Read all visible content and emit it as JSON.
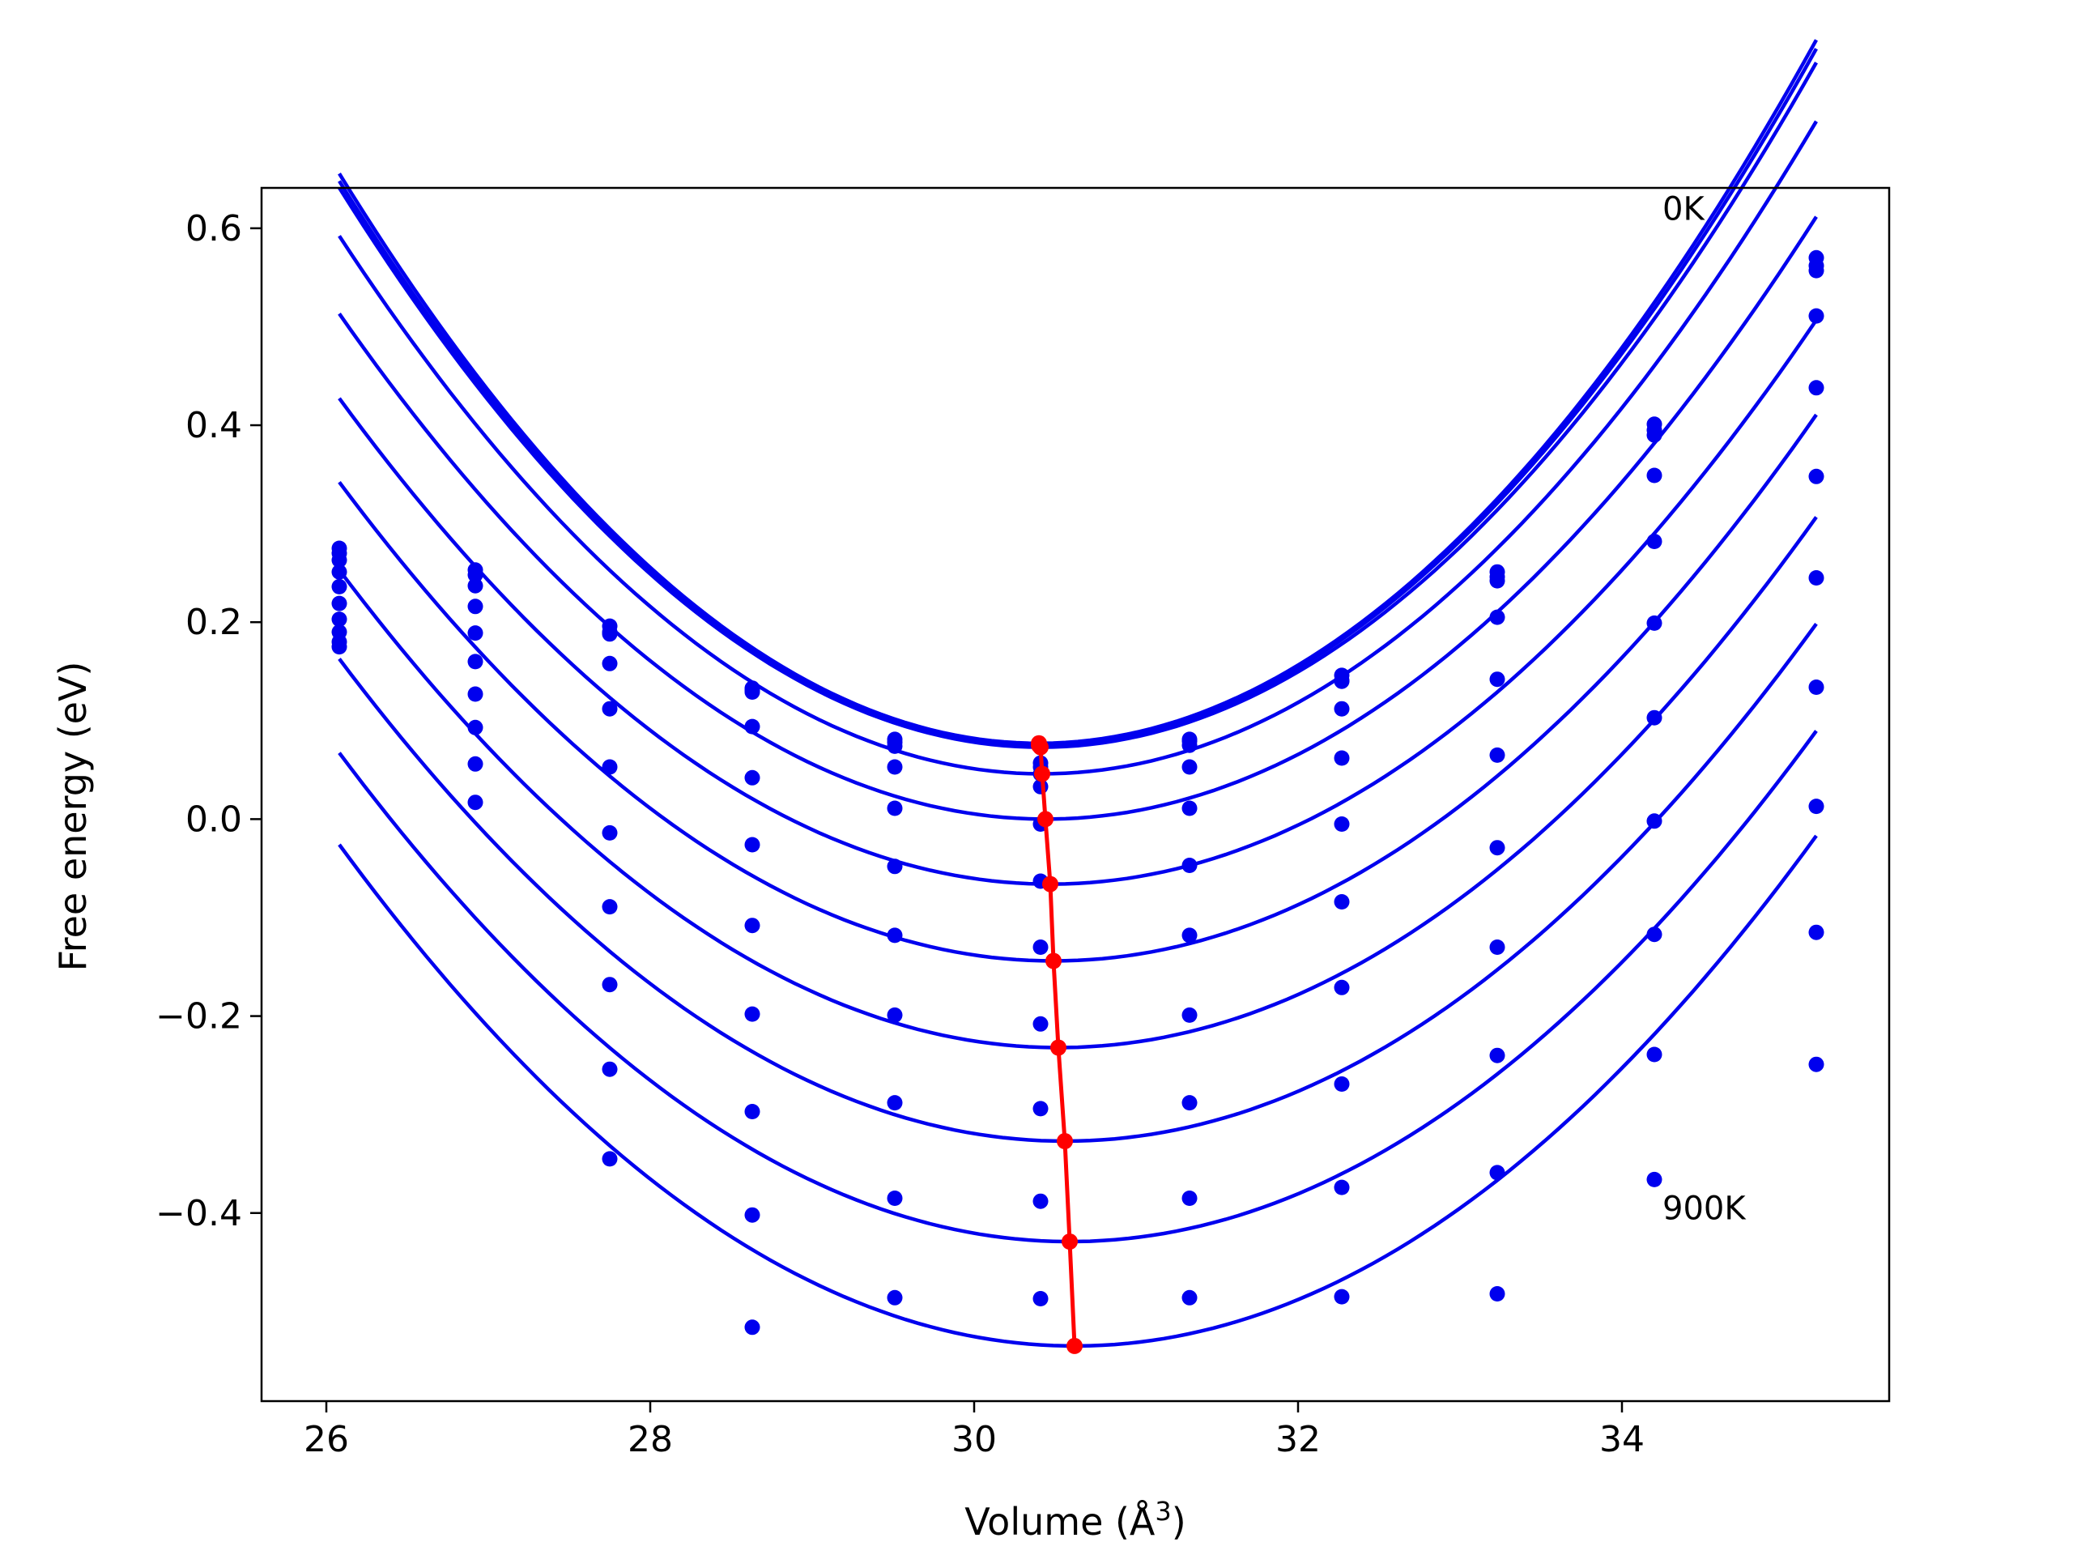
{
  "chart_data": {
    "type": "scatter",
    "title": "",
    "xlabel": "Volume (Å",
    "xlabel_superscript": "3",
    "xlabel_close": ")",
    "ylabel": "Free energy (eV)",
    "xlim": [
      25.6,
      35.65
    ],
    "ylim": [
      -0.591,
      0.641
    ],
    "xticks": [
      26,
      28,
      30,
      32,
      34
    ],
    "xtick_labels": [
      "26",
      "28",
      "30",
      "32",
      "34"
    ],
    "yticks": [
      -0.4,
      -0.2,
      0.0,
      0.2,
      0.4,
      0.6
    ],
    "ytick_labels": [
      "−0.4",
      "−0.2",
      "0.0",
      "0.2",
      "0.4",
      "0.6"
    ],
    "grid": false,
    "legend": "none",
    "colors": {
      "points": "#0000ee",
      "fits": "#0000ee",
      "minima": "#ff0000"
    },
    "annotations": [
      {
        "text": "0K",
        "x": 34.25,
        "y": 0.62
      },
      {
        "text": "900K",
        "x": 34.25,
        "y": -0.395
      }
    ],
    "volumes": [
      26.08,
      26.92,
      27.75,
      28.63,
      29.51,
      30.41,
      31.33,
      32.27,
      33.23,
      34.2,
      35.2
    ],
    "series": [
      {
        "values": [
          0.275,
          0.253,
          0.196,
          0.133,
          0.078,
          0.057,
          0.079,
          0.146,
          0.251,
          0.401,
          0.57
        ],
        "fit": {
          "a": 0.031,
          "v0": 30.4,
          "e0": 0.077
        }
      },
      {
        "values": [
          0.27,
          0.248,
          0.19,
          0.129,
          0.074,
          0.053,
          0.075,
          0.141,
          0.246,
          0.395,
          0.562
        ],
        "fit": {
          "a": 0.0307,
          "v0": 30.4,
          "e0": 0.075
        }
      },
      {
        "values": [
          0.263,
          0.237,
          0.188,
          0.131,
          0.081,
          0.033,
          0.081,
          0.14,
          0.242,
          0.39,
          0.557
        ],
        "fit": {
          "a": 0.0303,
          "v0": 30.41,
          "e0": 0.073
        }
      },
      {
        "values": [
          0.251,
          0.216,
          0.158,
          0.094,
          0.053,
          0.046,
          0.053,
          0.112,
          0.205,
          0.349,
          0.511
        ],
        "fit": {
          "a": 0.029,
          "v0": 30.42,
          "e0": 0.046
        }
      },
      {
        "values": [
          0.236,
          0.189,
          0.112,
          0.042,
          0.011,
          -0.005,
          0.011,
          0.062,
          0.142,
          0.282,
          0.438
        ],
        "fit": {
          "a": 0.027,
          "v0": 30.44,
          "e0": 0.0
        }
      },
      {
        "values": [
          0.219,
          0.16,
          0.053,
          -0.026,
          -0.048,
          -0.063,
          -0.047,
          -0.005,
          0.065,
          0.199,
          0.348
        ],
        "fit": {
          "a": 0.0256,
          "v0": 30.47,
          "e0": -0.066
        }
      },
      {
        "values": [
          0.203,
          0.127,
          -0.014,
          -0.108,
          -0.118,
          -0.13,
          -0.118,
          -0.084,
          -0.029,
          0.103,
          0.245
        ],
        "fit": {
          "a": 0.025,
          "v0": 30.49,
          "e0": -0.144
        }
      },
      {
        "values": [
          0.19,
          0.093,
          -0.089,
          -0.198,
          -0.199,
          -0.208,
          -0.199,
          -0.171,
          -0.13,
          -0.002,
          0.134
        ],
        "fit": {
          "a": 0.0246,
          "v0": 30.52,
          "e0": -0.232
        }
      },
      {
        "values": [
          0.18,
          0.056,
          -0.168,
          -0.297,
          -0.288,
          -0.294,
          -0.288,
          -0.269,
          -0.24,
          -0.117,
          0.013
        ],
        "fit": {
          "a": 0.0244,
          "v0": 30.56,
          "e0": -0.327
        }
      },
      {
        "values": [
          0.175,
          0.017,
          -0.254,
          -0.402,
          -0.385,
          -0.388,
          -0.385,
          -0.374,
          -0.359,
          -0.239,
          -0.115
        ],
        "fit": {
          "a": 0.0244,
          "v0": 30.59,
          "e0": -0.429
        }
      },
      {
        "values": [
          null,
          null,
          -0.345,
          -0.516,
          -0.486,
          -0.487,
          -0.486,
          -0.485,
          -0.482,
          -0.366,
          -0.249
        ],
        "fit": {
          "a": 0.0247,
          "v0": 30.62,
          "e0": -0.535
        }
      }
    ],
    "minima": {
      "x": [
        30.4,
        30.4,
        30.41,
        30.42,
        30.44,
        30.47,
        30.49,
        30.52,
        30.56,
        30.59,
        30.62
      ],
      "y": [
        0.077,
        0.075,
        0.073,
        0.046,
        0.0,
        -0.066,
        -0.144,
        -0.232,
        -0.327,
        -0.429,
        -0.535
      ]
    }
  }
}
